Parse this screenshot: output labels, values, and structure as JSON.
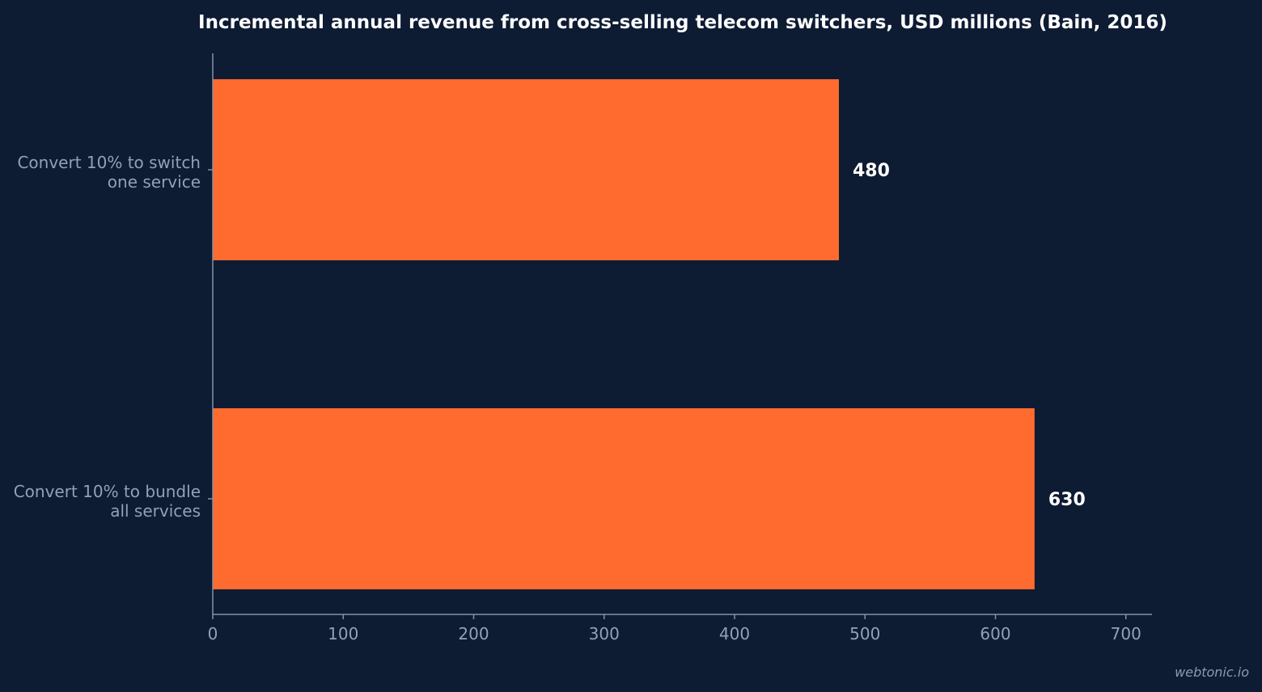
{
  "chart_data": {
    "type": "bar",
    "orientation": "horizontal",
    "title": "Incremental annual revenue from cross-selling telecom switchers, USD millions (Bain, 2016)",
    "categories": [
      [
        "Convert 10% to switch",
        "one service"
      ],
      [
        "Convert 10% to bundle",
        "all services"
      ]
    ],
    "values": [
      480,
      630
    ],
    "value_labels": [
      "480",
      "630"
    ],
    "xlim": [
      0,
      720
    ],
    "xticks": [
      0,
      100,
      200,
      300,
      400,
      500,
      600,
      700
    ],
    "xtick_labels": [
      "0",
      "100",
      "200",
      "300",
      "400",
      "500",
      "600",
      "700"
    ],
    "xlabel": "",
    "ylabel": "",
    "grid": false,
    "legend": "none",
    "colors": {
      "bar": "#ff6b2e",
      "background": "#0d1b33"
    }
  },
  "footer": {
    "watermark": "webtonic.io"
  }
}
